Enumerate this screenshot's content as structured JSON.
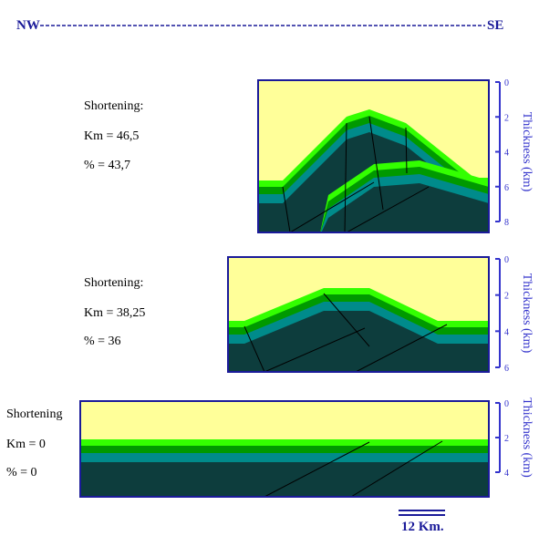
{
  "header": {
    "left": "NW",
    "right": "SE"
  },
  "panels": [
    {
      "label": "Shortening:",
      "km": "Km = 46,5",
      "percent": "% = 43,7",
      "axis_title": "Thickness (km)",
      "ticks": [
        0,
        2,
        4,
        6,
        8
      ]
    },
    {
      "label": "Shortening:",
      "km": "Km = 38,25",
      "percent": "% = 36",
      "axis_title": "Thickness (km)",
      "ticks": [
        0,
        2,
        4,
        6
      ]
    },
    {
      "label": "Shortening",
      "km": "Km = 0",
      "percent": "% = 0",
      "axis_title": "Thickness (km)",
      "ticks": [
        0,
        2,
        4
      ]
    }
  ],
  "scale": "12 Km."
}
